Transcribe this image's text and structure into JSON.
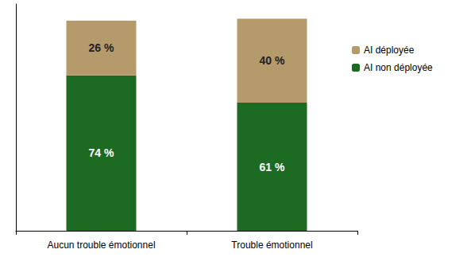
{
  "chart_data": {
    "type": "bar",
    "stacked": true,
    "categories": [
      "Aucun trouble émotionnel",
      "Trouble émotionnel"
    ],
    "series": [
      {
        "name": "AI non déployée",
        "color": "#1d6b22",
        "values": [
          74,
          61
        ],
        "value_labels": [
          "74 %",
          "61 %"
        ]
      },
      {
        "name": "AI déployée",
        "color": "#b59a6c",
        "values": [
          26,
          40
        ],
        "value_labels": [
          "26 %",
          "40 %"
        ]
      }
    ],
    "ylim": [
      0,
      108
    ],
    "grid": false,
    "legend": "right",
    "data_labels": true,
    "tick_labels": "x"
  }
}
